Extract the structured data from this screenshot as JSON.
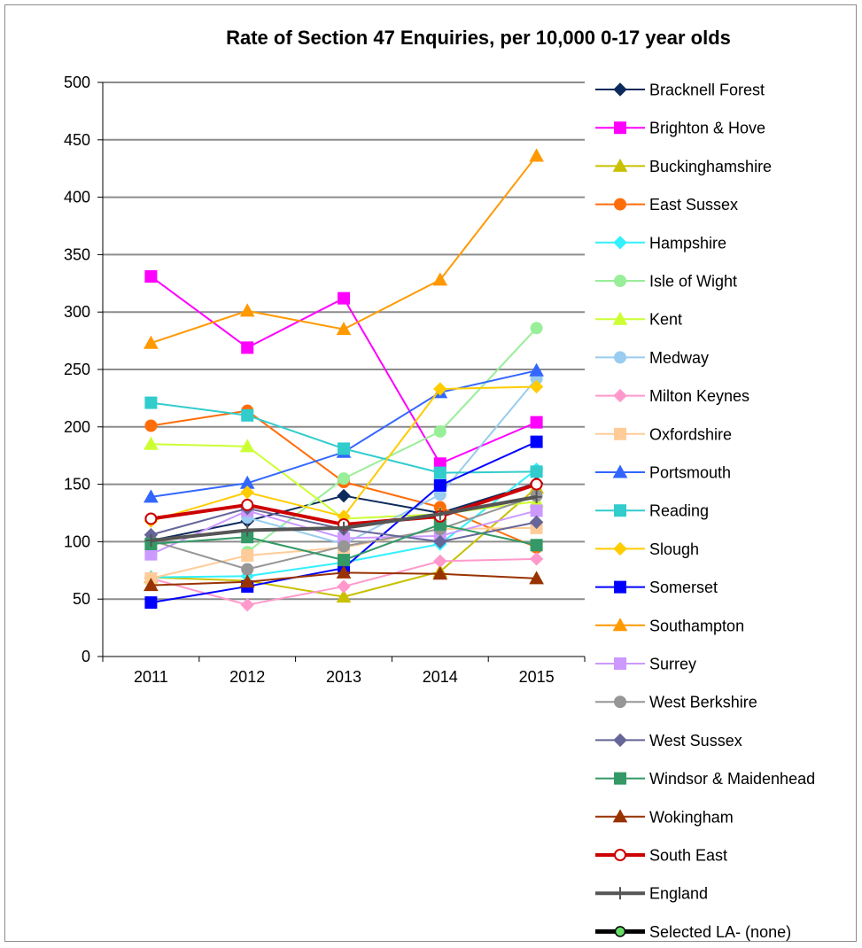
{
  "chart_data": {
    "type": "line",
    "title": "Rate of Section 47 Enquiries, per 10,000 0-17 year olds",
    "xlabel": "",
    "ylabel": "",
    "categories": [
      "2011",
      "2012",
      "2013",
      "2014",
      "2015"
    ],
    "ylim": [
      0,
      500
    ],
    "yticks": [
      0,
      50,
      100,
      150,
      200,
      250,
      300,
      350,
      400,
      450,
      500
    ],
    "grid": true,
    "legend_position": "right",
    "series": [
      {
        "name": "Bracknell Forest",
        "color": "#0d2a5c",
        "marker": "diamond",
        "values": [
          101,
          118,
          140,
          125,
          151
        ]
      },
      {
        "name": "Brighton & Hove",
        "color": "#ff00ff",
        "marker": "square",
        "values": [
          331,
          269,
          312,
          168,
          204
        ]
      },
      {
        "name": "Buckinghamshire",
        "color": "#c8c000",
        "marker": "triangle",
        "values": [
          69,
          66,
          52,
          74,
          147
        ]
      },
      {
        "name": "East Sussex",
        "color": "#ff6d0b",
        "marker": "circle",
        "values": [
          201,
          214,
          152,
          130,
          95
        ]
      },
      {
        "name": "Hampshire",
        "color": "#33f0ff",
        "marker": "diamond",
        "values": [
          69,
          70,
          82,
          98,
          163
        ]
      },
      {
        "name": "Isle of Wight",
        "color": "#99ee99",
        "marker": "circle",
        "values": [
          null,
          91,
          155,
          196,
          286
        ]
      },
      {
        "name": "Kent",
        "color": "#ccff33",
        "marker": "triangle",
        "values": [
          185,
          183,
          120,
          124,
          135
        ]
      },
      {
        "name": "Medway",
        "color": "#99ccee",
        "marker": "circle",
        "values": [
          null,
          121,
          98,
          141,
          242
        ]
      },
      {
        "name": "Milton Keynes",
        "color": "#ff99cc",
        "marker": "diamond",
        "values": [
          68,
          45,
          61,
          83,
          85
        ]
      },
      {
        "name": "Oxfordshire",
        "color": "#ffcc99",
        "marker": "square",
        "values": [
          68,
          88,
          95,
          111,
          112
        ]
      },
      {
        "name": "Portsmouth",
        "color": "#3366ff",
        "marker": "triangle",
        "values": [
          139,
          151,
          178,
          230,
          249
        ]
      },
      {
        "name": "Reading",
        "color": "#33cccc",
        "marker": "square",
        "values": [
          221,
          210,
          181,
          160,
          161
        ]
      },
      {
        "name": "Slough",
        "color": "#ffcc00",
        "marker": "diamond",
        "values": [
          118,
          143,
          122,
          233,
          235
        ]
      },
      {
        "name": "Somerset",
        "color": "#0000ff",
        "marker": "square",
        "values": [
          47,
          61,
          77,
          149,
          187
        ]
      },
      {
        "name": "Southampton",
        "color": "#ff9900",
        "marker": "triangle",
        "values": [
          273,
          301,
          285,
          328,
          436
        ]
      },
      {
        "name": "Surrey",
        "color": "#cc99ff",
        "marker": "square",
        "values": [
          89,
          127,
          103,
          105,
          127
        ]
      },
      {
        "name": "West Berkshire",
        "color": "#969696",
        "marker": "circle",
        "values": [
          101,
          76,
          96,
          111,
          140
        ]
      },
      {
        "name": "West Sussex",
        "color": "#666699",
        "marker": "diamond",
        "values": [
          106,
          129,
          111,
          100,
          117
        ]
      },
      {
        "name": "Windsor & Maidenhead",
        "color": "#339966",
        "marker": "square",
        "values": [
          98,
          104,
          84,
          115,
          97
        ]
      },
      {
        "name": "Wokingham",
        "color": "#993300",
        "marker": "triangle",
        "values": [
          62,
          65,
          73,
          72,
          68
        ]
      },
      {
        "name": "South East",
        "color": "#cc0000",
        "marker": "open-circle",
        "values": [
          120,
          132,
          115,
          122,
          150
        ]
      },
      {
        "name": "England",
        "color": "#555555",
        "marker": "plus",
        "values": [
          101,
          110,
          112,
          124,
          139
        ]
      },
      {
        "name": "Selected LA- (none)",
        "color": "#000000",
        "marker": "green-circle",
        "values": [
          null,
          null,
          null,
          null,
          null
        ]
      }
    ]
  }
}
